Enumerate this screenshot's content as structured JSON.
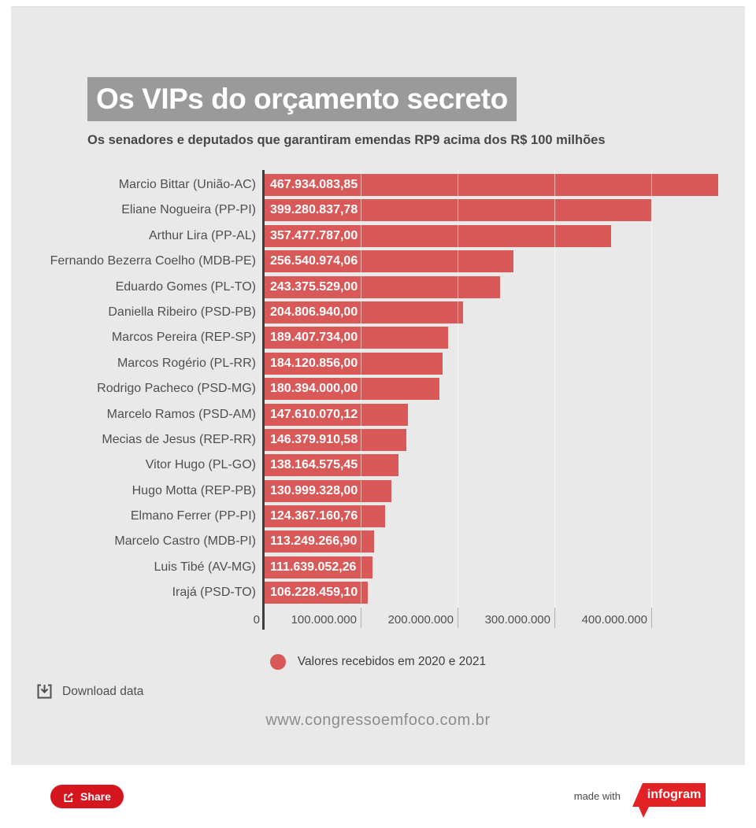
{
  "page": {
    "background_color": "#ffffff",
    "card_color": "#e9e9e9"
  },
  "header": {
    "title": "Os VIPs do orçamento secreto",
    "title_highlight_color": "#9a9a9a",
    "subtitle": "Os senadores e deputados que garantiram emendas RP9 acima dos R$ 100 milhões"
  },
  "chart_data": {
    "type": "bar",
    "orientation": "horizontal",
    "title": "Os VIPs do orçamento secreto",
    "subtitle": "Os senadores e deputados que garantiram emendas RP9 acima dos R$ 100 milhões",
    "categories": [
      "Marcio Bittar (União-AC)",
      "Eliane Nogueira (PP-PI)",
      "Arthur Lira (PP-AL)",
      "Fernando Bezerra Coelho (MDB-PE)",
      "Eduardo Gomes (PL-TO)",
      "Daniella Ribeiro (PSD-PB)",
      "Marcos Pereira (REP-SP)",
      "Marcos Rogério (PL-RR)",
      "Rodrigo Pacheco (PSD-MG)",
      "Marcelo Ramos (PSD-AM)",
      "Mecias de Jesus (REP-RR)",
      "Vitor Hugo (PL-GO)",
      "Hugo Motta (REP-PB)",
      "Elmano Ferrer (PP-PI)",
      "Marcelo Castro (MDB-PI)",
      "Luis Tibé (AV-MG)",
      "Irajá (PSD-TO)"
    ],
    "values": [
      467934083.85,
      399280837.78,
      357477787.0,
      256540974.06,
      243375529.0,
      204806940.0,
      189407734.0,
      184120856.0,
      180394000.0,
      147610070.12,
      146379910.58,
      138164575.45,
      130999328.0,
      124367160.76,
      113249266.9,
      111639052.26,
      106228459.1
    ],
    "value_labels": [
      "467.934.083,85",
      "399.280.837,78",
      "357.477.787,00",
      "256.540.974,06",
      "243.375.529,00",
      "204.806.940,00",
      "189.407.734,00",
      "184.120.856,00",
      "180.394.000,00",
      "147.610.070,12",
      "146.379.910,58",
      "138.164.575,45",
      "130.999.328,00",
      "124.367.160,76",
      "113.249.266,90",
      "111.639.052,26",
      "106.228.459,10"
    ],
    "x_tick_labels": [
      "0",
      "100.000.000",
      "200.000.000",
      "300.000.000",
      "400.000.000"
    ],
    "x_tick_values": [
      0,
      100000000,
      200000000,
      300000000,
      400000000
    ],
    "xlim": [
      0,
      480000000
    ],
    "grid": true,
    "bar_color": "#d95858",
    "series": [
      {
        "name": "Valores recebidos em 2020 e 2021",
        "color": "#d95858"
      }
    ],
    "legend_position": "bottom"
  },
  "legend": {
    "label": "Valores recebidos em 2020 e 2021",
    "marker_color": "#d95858"
  },
  "footer": {
    "download_label": "Download data",
    "website": "www.congressoemfoco.com.br"
  },
  "share": {
    "label": "Share",
    "button_color": "#d6161f"
  },
  "attribution": {
    "made_with": "made with",
    "brand": "infogram",
    "brand_color": "#e32226"
  }
}
